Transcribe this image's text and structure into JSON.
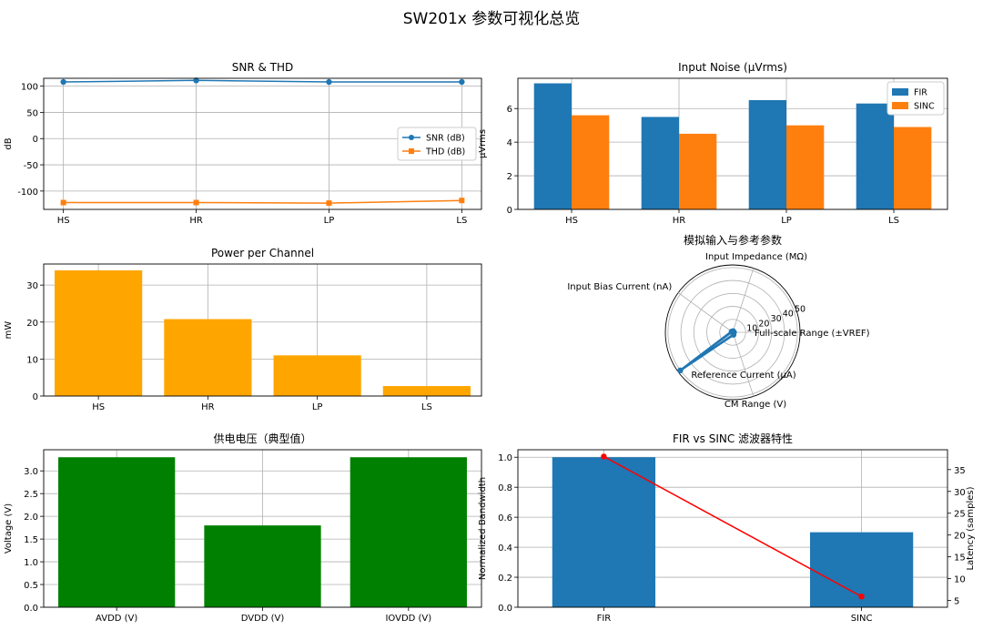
{
  "suptitle": "SW201x 参数可视化总览",
  "chart_data": [
    {
      "id": "snr-thd",
      "type": "line",
      "title": "SNR & THD",
      "ylabel": "dB",
      "categories": [
        "HS",
        "HR",
        "LP",
        "LS"
      ],
      "ylim": [
        -135,
        115
      ],
      "yticks": [
        100,
        50,
        0,
        -50,
        -100
      ],
      "ytick_labels": [
        "100",
        "50",
        "0",
        "-50",
        "-100"
      ],
      "grid": true,
      "legend": "center-right",
      "series": [
        {
          "name": "SNR (dB)",
          "values": [
            108,
            111,
            108,
            108
          ],
          "color": "#1f77b4",
          "marker": "circle"
        },
        {
          "name": "THD (dB)",
          "values": [
            -122,
            -122,
            -123,
            -118
          ],
          "color": "#ff7f0e",
          "marker": "square"
        }
      ]
    },
    {
      "id": "input-noise",
      "type": "bar",
      "title": "Input Noise (µVrms)",
      "ylabel": "µVrms",
      "categories": [
        "HS",
        "HR",
        "LP",
        "LS"
      ],
      "ylim": [
        0,
        7.8
      ],
      "yticks": [
        0,
        2,
        4,
        6
      ],
      "ytick_labels": [
        "0",
        "2",
        "4",
        "6"
      ],
      "grid": true,
      "legend": "top-right",
      "series": [
        {
          "name": "FIR",
          "values": [
            7.5,
            5.5,
            6.5,
            6.3
          ],
          "color": "#1f77b4"
        },
        {
          "name": "SINC",
          "values": [
            5.6,
            4.5,
            5.0,
            4.9
          ],
          "color": "#ff7f0e"
        }
      ]
    },
    {
      "id": "power",
      "type": "bar",
      "title": "Power per Channel",
      "ylabel": "mW",
      "categories": [
        "HS",
        "HR",
        "LP",
        "LS"
      ],
      "ylim": [
        0,
        35.7
      ],
      "yticks": [
        0,
        10,
        20,
        30
      ],
      "ytick_labels": [
        "0",
        "10",
        "20",
        "30"
      ],
      "grid": true,
      "series": [
        {
          "name": "",
          "values": [
            34,
            20.8,
            11,
            2.7
          ],
          "color": "#ffa500"
        }
      ]
    },
    {
      "id": "analog-radar",
      "type": "radar",
      "title": "模拟输入与参考参数",
      "axes": [
        "Full-scale Range (±VREF)",
        "Input Impedance (MΩ)",
        "Input Bias Current (nA)",
        "Reference Current (µA)",
        "CM Range (V)"
      ],
      "values": [
        1,
        1,
        1,
        50,
        2
      ],
      "rlim": [
        0,
        52
      ],
      "rticks": [
        10,
        20,
        30,
        40,
        50
      ],
      "rtick_labels": [
        "10",
        "20",
        "30",
        "40",
        "50"
      ],
      "color": "#1f77b4",
      "grid": true
    },
    {
      "id": "supply",
      "type": "bar",
      "title": "供电电压（典型值）",
      "ylabel": "Voltage (V)",
      "categories": [
        "AVDD (V)",
        "DVDD (V)",
        "IOVDD (V)"
      ],
      "ylim": [
        0,
        3.465
      ],
      "yticks": [
        0,
        0.5,
        1.0,
        1.5,
        2.0,
        2.5,
        3.0
      ],
      "ytick_labels": [
        "0.0",
        "0.5",
        "1.0",
        "1.5",
        "2.0",
        "2.5",
        "3.0"
      ],
      "grid": true,
      "series": [
        {
          "name": "",
          "values": [
            3.3,
            1.8,
            3.3
          ],
          "color": "#008000"
        }
      ]
    },
    {
      "id": "fir-sinc",
      "type": "bar+line",
      "title": "FIR vs SINC 滤波器特性",
      "ylabel": "Normalized Bandwidth",
      "y2label": "Latency (samples)",
      "categories": [
        "FIR",
        "SINC"
      ],
      "ylim": [
        0,
        1.05
      ],
      "yticks": [
        0,
        0.2,
        0.4,
        0.6,
        0.8,
        1.0
      ],
      "ytick_labels": [
        "0.0",
        "0.2",
        "0.4",
        "0.6",
        "0.8",
        "1.0"
      ],
      "y2lim": [
        3.45,
        39.55
      ],
      "y2ticks": [
        5,
        10,
        15,
        20,
        25,
        30,
        35
      ],
      "y2tick_labels": [
        "5",
        "10",
        "15",
        "20",
        "25",
        "30",
        "35"
      ],
      "grid": true,
      "bars": {
        "values": [
          1.0,
          0.5
        ],
        "color": "#1f77b4"
      },
      "line": {
        "values": [
          38,
          5.9
        ],
        "color": "#ff0000"
      }
    }
  ]
}
